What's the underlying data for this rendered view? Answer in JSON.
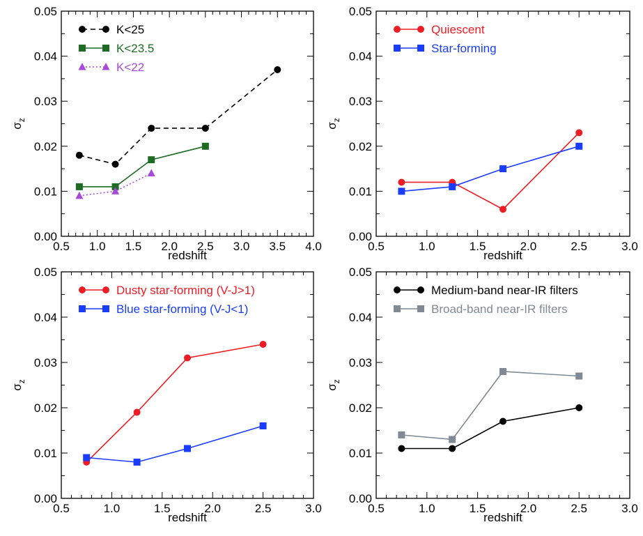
{
  "chart_data": [
    {
      "type": "line",
      "xlabel": "redshift",
      "ylabel": "σ",
      "ylabel_sub": "z",
      "xlim": [
        0.5,
        4.0
      ],
      "ylim": [
        0.0,
        0.05
      ],
      "xticks": [
        "0.5",
        "1.0",
        "1.5",
        "2.0",
        "2.5",
        "3.0",
        "3.5",
        "4.0"
      ],
      "yticks": [
        "0.00",
        "0.01",
        "0.02",
        "0.03",
        "0.04",
        "0.05"
      ],
      "legend_position": "top-left",
      "series": [
        {
          "name": "K<25",
          "color": "#000000",
          "marker": "circle",
          "dash": "dashed",
          "x": [
            0.75,
            1.25,
            1.75,
            2.5,
            3.5
          ],
          "y": [
            0.018,
            0.016,
            0.024,
            0.024,
            0.037
          ]
        },
        {
          "name": "K<23.5",
          "color": "#1e6b24",
          "marker": "square",
          "dash": "solid",
          "x": [
            0.75,
            1.25,
            1.75,
            2.5
          ],
          "y": [
            0.011,
            0.011,
            0.017,
            0.02
          ]
        },
        {
          "name": "K<22",
          "color": "#a64ad9",
          "marker": "triangle",
          "dash": "dotted",
          "x": [
            0.75,
            1.25,
            1.75
          ],
          "y": [
            0.009,
            0.01,
            0.014
          ]
        }
      ]
    },
    {
      "type": "line",
      "xlabel": "redshift",
      "ylabel": "σ",
      "ylabel_sub": "z",
      "xlim": [
        0.5,
        3.0
      ],
      "ylim": [
        0.0,
        0.05
      ],
      "xticks": [
        "0.5",
        "1.0",
        "1.5",
        "2.0",
        "2.5",
        "3.0"
      ],
      "yticks": [
        "0.00",
        "0.01",
        "0.02",
        "0.03",
        "0.04",
        "0.05"
      ],
      "legend_position": "top-left",
      "series": [
        {
          "name": "Quiescent",
          "color": "#ee1c24",
          "marker": "circle",
          "dash": "solid",
          "x": [
            0.75,
            1.25,
            1.75,
            2.5
          ],
          "y": [
            0.012,
            0.012,
            0.006,
            0.023
          ]
        },
        {
          "name": "Star-forming",
          "color": "#1a3cff",
          "marker": "square",
          "dash": "solid",
          "x": [
            0.75,
            1.25,
            1.75,
            2.5
          ],
          "y": [
            0.01,
            0.011,
            0.015,
            0.02
          ]
        }
      ]
    },
    {
      "type": "line",
      "xlabel": "redshift",
      "ylabel": "σ",
      "ylabel_sub": "z",
      "xlim": [
        0.5,
        3.0
      ],
      "ylim": [
        0.0,
        0.05
      ],
      "xticks": [
        "0.5",
        "1.0",
        "1.5",
        "2.0",
        "2.5",
        "3.0"
      ],
      "yticks": [
        "0.00",
        "0.01",
        "0.02",
        "0.03",
        "0.04",
        "0.05"
      ],
      "legend_position": "top-left",
      "series": [
        {
          "name": "Dusty star-forming (V-J>1)",
          "color": "#ee1c24",
          "marker": "circle",
          "dash": "solid",
          "x": [
            0.75,
            1.25,
            1.75,
            2.5
          ],
          "y": [
            0.008,
            0.019,
            0.031,
            0.034
          ]
        },
        {
          "name": "Blue star-forming (V-J<1)",
          "color": "#1a3cff",
          "marker": "square",
          "dash": "solid",
          "x": [
            0.75,
            1.25,
            1.75,
            2.5
          ],
          "y": [
            0.009,
            0.008,
            0.011,
            0.016
          ]
        }
      ]
    },
    {
      "type": "line",
      "xlabel": "redshift",
      "ylabel": "σ",
      "ylabel_sub": "z",
      "xlim": [
        0.5,
        3.0
      ],
      "ylim": [
        0.0,
        0.05
      ],
      "xticks": [
        "0.5",
        "1.0",
        "1.5",
        "2.0",
        "2.5",
        "3.0"
      ],
      "yticks": [
        "0.00",
        "0.01",
        "0.02",
        "0.03",
        "0.04",
        "0.05"
      ],
      "legend_position": "top-left",
      "series": [
        {
          "name": "Medium-band near-IR filters",
          "color": "#000000",
          "marker": "circle",
          "dash": "solid",
          "x": [
            0.75,
            1.25,
            1.75,
            2.5
          ],
          "y": [
            0.011,
            0.011,
            0.017,
            0.02
          ]
        },
        {
          "name": "Broad-band near-IR filters",
          "color": "#7f8a94",
          "marker": "square",
          "dash": "solid",
          "x": [
            0.75,
            1.25,
            1.75,
            2.5
          ],
          "y": [
            0.014,
            0.013,
            0.028,
            0.027
          ]
        }
      ]
    }
  ]
}
